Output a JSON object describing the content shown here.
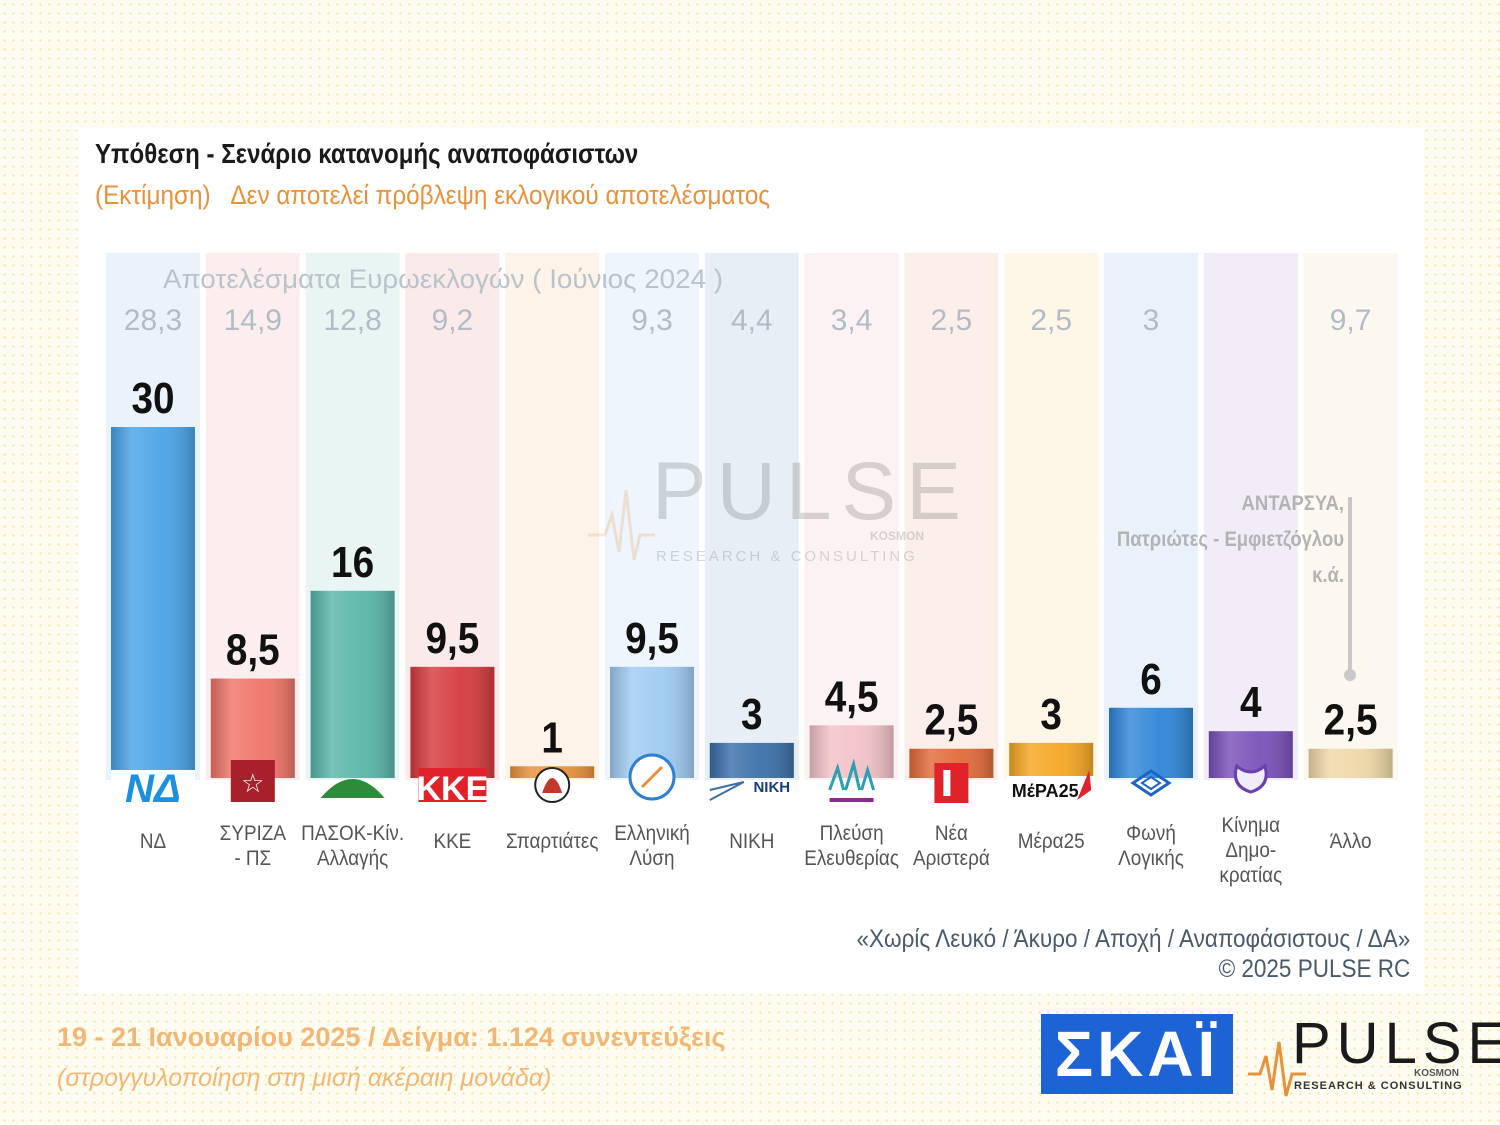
{
  "header": {
    "title": "Υπόθεση - Σενάριο κατανομής αναποφάσιστων",
    "subtitle_left": "(Εκτίμηση)",
    "subtitle_right": "Δεν αποτελεί πρόβλεψη εκλογικού αποτελέσματος"
  },
  "chart_data": {
    "type": "bar",
    "reference_label": "Αποτελέσματα Ευρωεκλογών  ( Ιούνιος 2024 )",
    "categories": [
      "ΝΔ",
      "ΣΥΡΙΖΑ - ΠΣ",
      "ΠΑΣΟΚ-Κιν. Αλλαγής",
      "ΚΚΕ",
      "Σπαρτιάτες",
      "Ελληνική Λύση",
      "ΝΙΚΗ",
      "Πλεύση Ελευθερίας",
      "Νέα Αριστερά",
      "Μέρα25",
      "Φωνή Λογικής",
      "Κίνημα Δημο-κρατίας",
      "Άλλο"
    ],
    "category_lines": [
      [
        "ΝΔ"
      ],
      [
        "ΣΥΡΙΖΑ",
        "- ΠΣ"
      ],
      [
        "ΠΑΣΟΚ-Κίν.",
        "Αλλαγής"
      ],
      [
        "ΚΚΕ"
      ],
      [
        "Σπαρτιάτες"
      ],
      [
        "Ελληνική",
        "Λύση"
      ],
      [
        "ΝΙΚΗ"
      ],
      [
        "Πλεύση",
        "Ελευθερίας"
      ],
      [
        "Νέα",
        "Αριστερά"
      ],
      [
        "Μέρα25"
      ],
      [
        "Φωνή",
        "Λογικής"
      ],
      [
        "Κίνημα",
        "Δημο-",
        "κρατίας"
      ],
      [
        "Άλλο"
      ]
    ],
    "series": [
      {
        "name": "Εκτίμηση",
        "values": [
          30,
          8.5,
          16,
          9.5,
          1,
          9.5,
          3,
          4.5,
          2.5,
          3,
          6,
          4,
          2.5
        ],
        "labels": [
          "30",
          "8,5",
          "16",
          "9,5",
          "1",
          "9,5",
          "3",
          "4,5",
          "2,5",
          "3",
          "6",
          "4",
          "2,5"
        ]
      },
      {
        "name": "Αποτελέσματα Ευρωεκλογών ( Ιούνιος 2024 )",
        "values": [
          28.3,
          14.9,
          12.8,
          9.2,
          null,
          9.3,
          4.4,
          3.4,
          2.5,
          2.5,
          3,
          null,
          9.7
        ],
        "labels": [
          "28,3",
          "14,9",
          "12,8",
          "9,2",
          "",
          "9,3",
          "4,4",
          "3,4",
          "2,5",
          "2,5",
          "3",
          "",
          "9,7"
        ]
      }
    ],
    "colors": [
      "#4aa3e6",
      "#ef7468",
      "#59b6a8",
      "#d63a3e",
      "#e8913b",
      "#9fcbf2",
      "#3b6fa8",
      "#f2c2c7",
      "#e26a3a",
      "#f5a623",
      "#2f86d8",
      "#7a50b8",
      "#efd8a8"
    ],
    "bg_colors": [
      "#eaf3fb",
      "#fceeee",
      "#e9f5f3",
      "#fbeaea",
      "#fdf3e8",
      "#eef5fc",
      "#e8eef6",
      "#fcf1f3",
      "#fcefe9",
      "#fef6e7",
      "#e9f2fb",
      "#f1ecf7",
      "#fcf8f0"
    ],
    "ylim": [
      0,
      35
    ],
    "annotation": [
      "ΑΝΤΑΡΣΥΑ,",
      "Πατριώτες - Εμφιετζόγλου",
      "κ.ά."
    ]
  },
  "logos": {
    "party_marks": [
      "ΝΔ",
      "",
      "",
      "ΚΚΕ",
      "",
      "",
      "ΝΙΚΗ",
      "",
      "",
      "ΜέΡΑ25",
      "",
      "",
      ""
    ],
    "skai": "ΣΚΑΪ",
    "pulse_word": "PULSE",
    "pulse_sub": "KOSMON",
    "pulse_tag": "RESEARCH & CONSULTING"
  },
  "watermark": {
    "word": "PULSE",
    "sub": "KOSMON",
    "tag": "RESEARCH & CONSULTING"
  },
  "footer": {
    "note": "«Χωρίς Λευκό / Άκυρο / Αποχή / Αναποφάσιστους / ΔΑ»",
    "copyright": "©  2025  PULSE RC",
    "date_sample": "19 - 21 Ιανουαρίου 2025  /  Δείγμα:  1.124 συνεντεύξεις",
    "rounding_note": "(στρογγυλοποίηση στη μισή ακέραιη μονάδα)"
  }
}
